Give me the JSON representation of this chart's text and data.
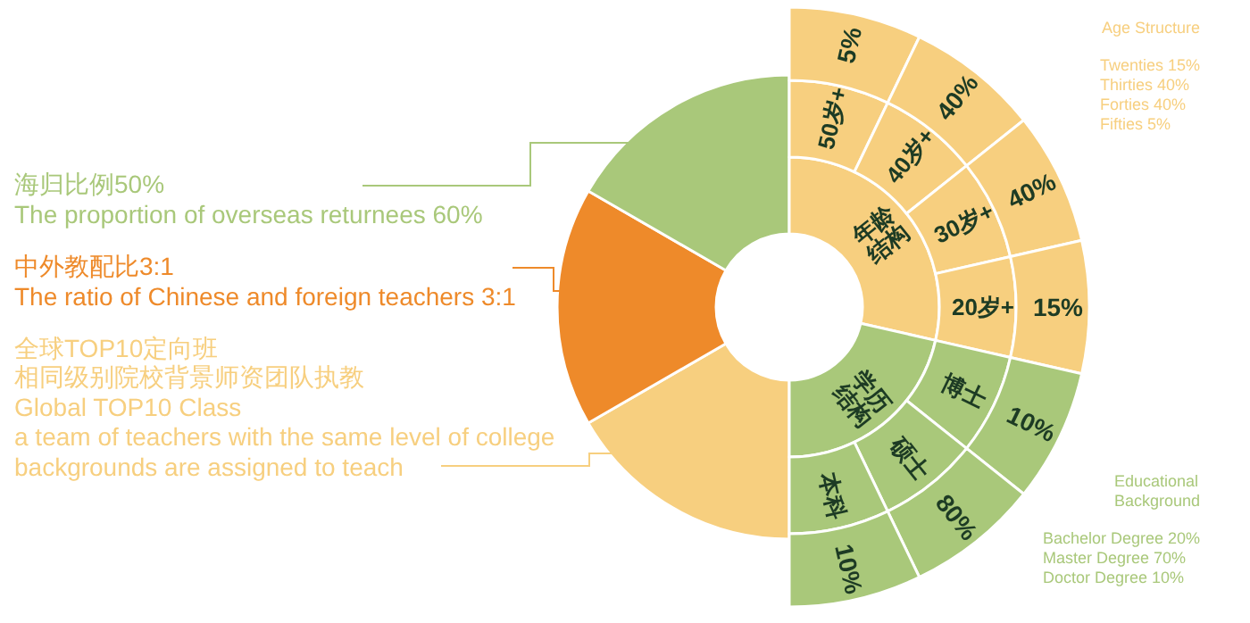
{
  "chart_data": {
    "type": "other",
    "categories": [
      "50岁+",
      "40岁+",
      "30岁+",
      "20岁+",
      "博士",
      "硕士",
      "本科"
    ],
    "colors": [
      "#a9c87a",
      "#ee8a2a",
      "#f7cf7f"
    ],
    "series": [
      {
        "name": "年龄结构",
        "color": "#f7cf7f",
        "values": [
          5,
          40,
          40,
          15,
          null,
          null,
          null
        ],
        "value_labels": [
          "5%",
          "40%",
          "40%",
          "15%",
          null,
          null,
          null
        ]
      },
      {
        "name": "学历结构",
        "color": "#a9c87a",
        "values": [
          null,
          null,
          null,
          null,
          10,
          80,
          10
        ],
        "value_labels": [
          null,
          null,
          null,
          null,
          "10%",
          "80%",
          "10%"
        ]
      }
    ],
    "annotations": [
      "海归比例50%",
      "The proportion of overseas returnees 60%",
      "中外教配比3:1",
      "The ratio of Chinese and foreign teachers 3:1",
      "全球TOP10定向班",
      "相同级别院校背景师资团队执教",
      "Global TOP10 Class",
      "a team of teachers with the same level of college\nbackgrounds are assigned to teach",
      "Age Structure",
      "Twenties 15%\nThirties 40%\nForties 40%\nFifties 5%",
      "Educational\nBackground",
      "Bachelor Degree 20%\nMaster Degree 70%\nDoctor Degree 10%"
    ]
  }
}
